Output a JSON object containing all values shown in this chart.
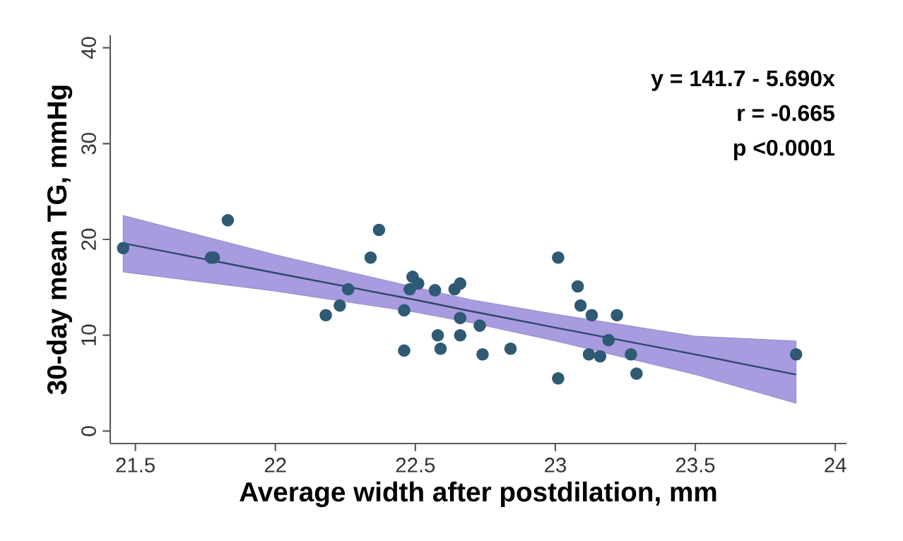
{
  "chart_data": {
    "type": "scatter",
    "xlabel": "Average width after postdilation, mm",
    "ylabel": "30-day mean TG, mmHg",
    "annotations": [
      "y = 141.7 - 5.690x",
      "r = -0.665",
      "p <0.0001"
    ],
    "xlim": [
      21.41,
      24.04
    ],
    "xticks": [
      21.5,
      22,
      22.5,
      23,
      23.5,
      24
    ],
    "ylim": [
      -1.3,
      41.3
    ],
    "yticks": [
      0,
      10,
      20,
      30,
      40
    ],
    "grid": false,
    "series": [
      {
        "type": "line",
        "color": "#2e4a6b",
        "marker": "none",
        "line_style": "solid",
        "x": [
          21.456,
          22.0,
          22.5,
          22.7,
          23.0,
          23.5,
          23.86
        ],
        "values": [
          19.6,
          16.5,
          13.7,
          12.5,
          10.8,
          8.0,
          5.9
        ],
        "lower": [
          16.6,
          14.6,
          12.4,
          11.3,
          9.4,
          5.9,
          2.9
        ],
        "upper": [
          22.5,
          18.4,
          15.0,
          13.7,
          12.2,
          9.9,
          9.4
        ]
      },
      {
        "color": "#2e5a73",
        "marker": "circle",
        "x": [
          21.456,
          21.77,
          21.78,
          21.83,
          22.18,
          22.23,
          22.26,
          22.34,
          22.37,
          22.46,
          22.46,
          22.48,
          22.49,
          22.51,
          22.57,
          22.58,
          22.59,
          22.64,
          22.66,
          22.66,
          22.66,
          22.73,
          22.74,
          22.84,
          23.01,
          23.01,
          23.08,
          23.09,
          23.13,
          23.12,
          23.16,
          23.19,
          23.22,
          23.27,
          23.29,
          23.86
        ],
        "values": [
          19.1,
          18.1,
          18.1,
          22.0,
          12.1,
          13.1,
          14.8,
          18.1,
          21.0,
          12.6,
          8.4,
          14.8,
          16.1,
          15.4,
          14.7,
          10.0,
          8.6,
          14.8,
          15.4,
          11.8,
          10.0,
          11.0,
          8.0,
          8.6,
          18.1,
          5.5,
          15.1,
          13.1,
          12.1,
          8.0,
          7.8,
          9.5,
          12.1,
          8.0,
          6.0,
          8.0
        ]
      }
    ]
  }
}
